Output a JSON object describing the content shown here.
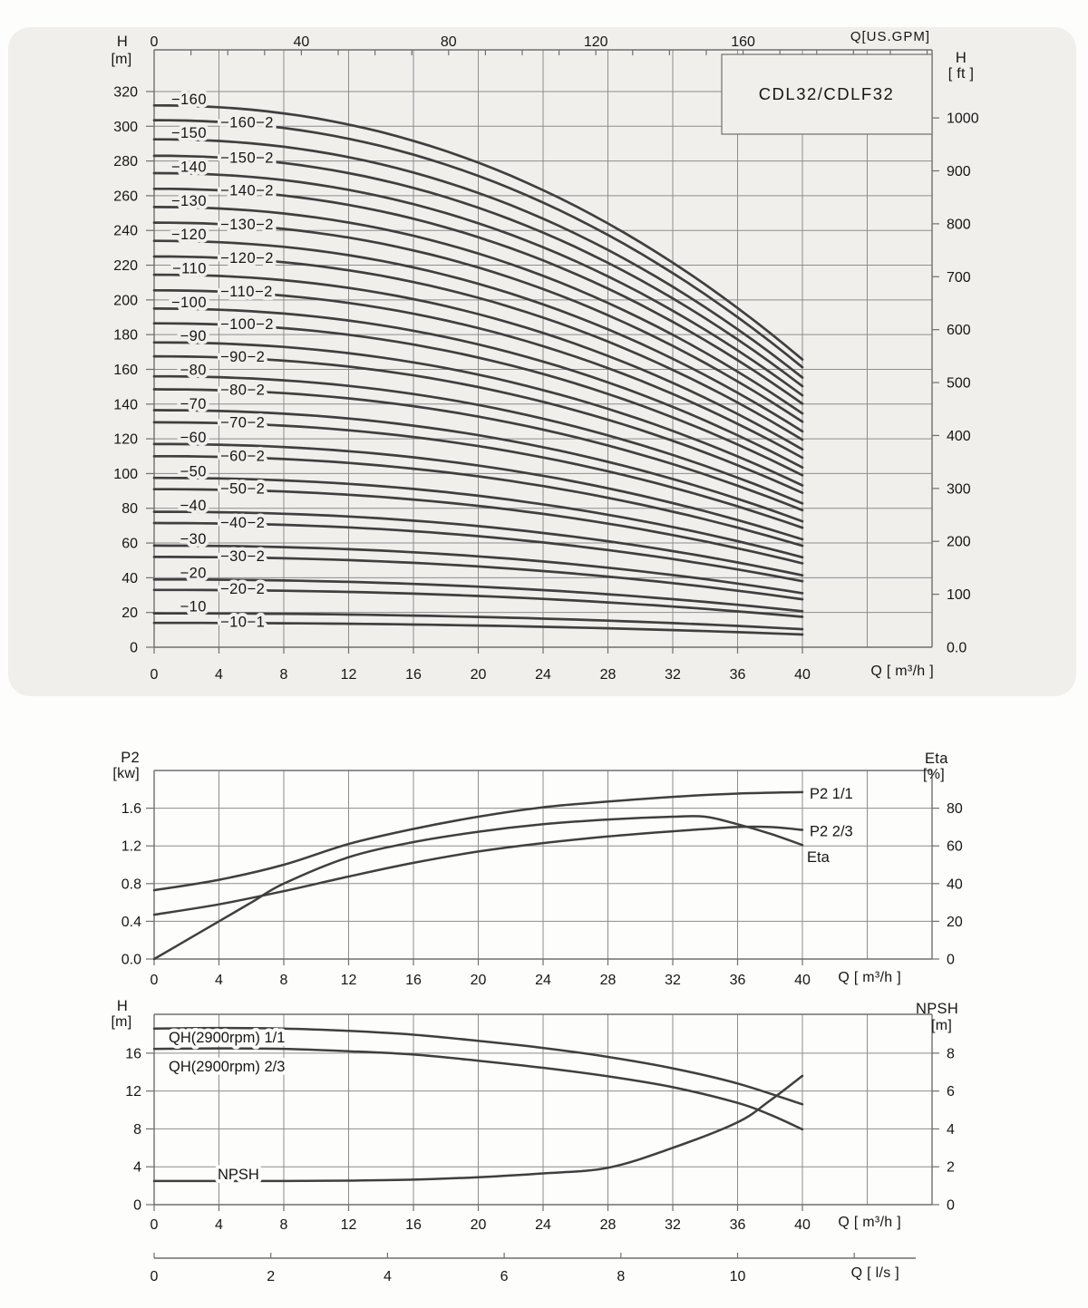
{
  "page": {
    "colors": {
      "background": "#fdfdfb",
      "card_background": "#f0efec",
      "grid": "#8d8d8d",
      "axis": "#6f6f6f",
      "curve": "#3f3f3f",
      "text": "#161616"
    }
  },
  "chart_data": [
    {
      "id": "qh-curve-family",
      "type": "line",
      "title": "CDL32/CDLF32",
      "axis_labels": {
        "left_top": "H",
        "left_unit": "[m]",
        "right_top": "H",
        "right_unit": "[ ft ]",
        "x_top": "Q[US.GPM]",
        "x_bottom": "Q [ m³/h ]"
      },
      "x_m3h": {
        "min": 0,
        "max": 48,
        "grid_step": 4,
        "tick_labels": [
          0,
          4,
          8,
          12,
          16,
          20,
          24,
          28,
          32,
          36,
          40
        ]
      },
      "x_gpm": {
        "tick_labels": [
          0,
          40,
          80,
          120,
          160
        ],
        "minor_tick_step": 10,
        "minor_tick_max": 210,
        "gpm_per_m3h": 4.40287
      },
      "y_m": {
        "min": 0,
        "max": 344,
        "grid_step": 20,
        "grid_max": 320,
        "tick_labels": [
          0,
          20,
          40,
          60,
          80,
          100,
          120,
          140,
          160,
          180,
          200,
          220,
          240,
          260,
          280,
          300,
          320
        ]
      },
      "y_ft": {
        "tick_values": [
          0,
          100,
          200,
          300,
          400,
          500,
          600,
          700,
          800,
          900,
          1000
        ],
        "tick_labels": [
          "0.0",
          "100",
          "200",
          "300",
          "400",
          "500",
          "600",
          "700",
          "800",
          "900",
          "1000"
        ],
        "m_per_ft": 0.3048
      },
      "q_end": 40,
      "shape_exponent": 2.15,
      "series": [
        {
          "label": "−160",
          "h0": 312.0,
          "h40": 165.7
        },
        {
          "label": "−160−2",
          "h0": 303.5,
          "h40": 161.2
        },
        {
          "label": "−150",
          "h0": 292.5,
          "h40": 155.3
        },
        {
          "label": "−150−2",
          "h0": 283.0,
          "h40": 150.3
        },
        {
          "label": "−140",
          "h0": 273.0,
          "h40": 145.0
        },
        {
          "label": "−140−2",
          "h0": 264.0,
          "h40": 140.2
        },
        {
          "label": "−130",
          "h0": 253.5,
          "h40": 134.6
        },
        {
          "label": "−130−2",
          "h0": 244.5,
          "h40": 129.8
        },
        {
          "label": "−120",
          "h0": 234.0,
          "h40": 124.3
        },
        {
          "label": "−120−2",
          "h0": 225.0,
          "h40": 119.5
        },
        {
          "label": "−110",
          "h0": 214.5,
          "h40": 113.9
        },
        {
          "label": "−110−2",
          "h0": 205.5,
          "h40": 109.1
        },
        {
          "label": "−100",
          "h0": 195.0,
          "h40": 103.5
        },
        {
          "label": "−100−2",
          "h0": 186.5,
          "h40": 99.0
        },
        {
          "label": "−90",
          "h0": 175.5,
          "h40": 93.2
        },
        {
          "label": "−90−2",
          "h0": 167.5,
          "h40": 88.9
        },
        {
          "label": "−80",
          "h0": 156.0,
          "h40": 82.8
        },
        {
          "label": "−80−2",
          "h0": 148.5,
          "h40": 78.9
        },
        {
          "label": "−70",
          "h0": 136.5,
          "h40": 72.5
        },
        {
          "label": "−70−2",
          "h0": 129.5,
          "h40": 68.8
        },
        {
          "label": "−60",
          "h0": 117.0,
          "h40": 62.1
        },
        {
          "label": "−60−2",
          "h0": 110.0,
          "h40": 58.4
        },
        {
          "label": "−50",
          "h0": 97.5,
          "h40": 51.8
        },
        {
          "label": "−50−2",
          "h0": 91.0,
          "h40": 48.3
        },
        {
          "label": "−40",
          "h0": 78.0,
          "h40": 41.4
        },
        {
          "label": "−40−2",
          "h0": 71.5,
          "h40": 38.0
        },
        {
          "label": "−30",
          "h0": 58.5,
          "h40": 31.1
        },
        {
          "label": "−30−2",
          "h0": 52.0,
          "h40": 27.6
        },
        {
          "label": "−20",
          "h0": 39.0,
          "h40": 20.7
        },
        {
          "label": "−20−2",
          "h0": 33.0,
          "h40": 17.5
        },
        {
          "label": "−10",
          "h0": 19.5,
          "h40": 10.4
        },
        {
          "label": "−10−1",
          "h0": 14.0,
          "h40": 7.3
        }
      ]
    },
    {
      "id": "power-efficiency",
      "type": "line",
      "axis_labels": {
        "left_top": "P2",
        "left_unit": "[kw]",
        "right_top": "Eta",
        "right_unit": "[%]",
        "x_bottom": "Q [ m³/h ]"
      },
      "x_m3h": {
        "min": 0,
        "max": 48,
        "grid_step": 4,
        "tick_labels": [
          0,
          4,
          8,
          12,
          16,
          20,
          24,
          28,
          32,
          36,
          40
        ]
      },
      "y_kw": {
        "min": 0,
        "max": 2.0,
        "tick_values": [
          0,
          0.4,
          0.8,
          1.2,
          1.6
        ],
        "tick_labels": [
          "0.0",
          "0.4",
          "0.8",
          "1.2",
          "1.6"
        ]
      },
      "y_eta": {
        "min": 0,
        "max": 100,
        "tick_values": [
          0,
          20,
          40,
          60,
          80
        ],
        "tick_labels": [
          "0",
          "20",
          "40",
          "60",
          "80"
        ]
      },
      "series": [
        {
          "label": "P2  1/1",
          "axis": "kw",
          "points": [
            [
              0,
              0.73
            ],
            [
              4,
              0.84
            ],
            [
              8,
              1.0
            ],
            [
              12,
              1.22
            ],
            [
              16,
              1.38
            ],
            [
              20,
              1.51
            ],
            [
              24,
              1.61
            ],
            [
              28,
              1.67
            ],
            [
              32,
              1.72
            ],
            [
              36,
              1.755
            ],
            [
              40,
              1.77
            ]
          ]
        },
        {
          "label": "P2  2/3",
          "axis": "kw",
          "points": [
            [
              0,
              0.47
            ],
            [
              4,
              0.58
            ],
            [
              8,
              0.72
            ],
            [
              12,
              0.875
            ],
            [
              16,
              1.02
            ],
            [
              20,
              1.14
            ],
            [
              24,
              1.23
            ],
            [
              28,
              1.3
            ],
            [
              32,
              1.355
            ],
            [
              36,
              1.4
            ],
            [
              38,
              1.4
            ],
            [
              40,
              1.37
            ]
          ]
        },
        {
          "label": "Eta",
          "axis": "eta",
          "points": [
            [
              0,
              0
            ],
            [
              2,
              10
            ],
            [
              4,
              20
            ],
            [
              6,
              30
            ],
            [
              8,
              40
            ],
            [
              12,
              54
            ],
            [
              16,
              62
            ],
            [
              20,
              67.5
            ],
            [
              24,
              71.5
            ],
            [
              28,
              74
            ],
            [
              32,
              75.5
            ],
            [
              34,
              75.5
            ],
            [
              36,
              71.5
            ],
            [
              38,
              66.5
            ],
            [
              40,
              60.5
            ]
          ]
        }
      ]
    },
    {
      "id": "qh-npsh",
      "type": "line",
      "axis_labels": {
        "left_top": "H",
        "left_unit": "[m]",
        "right_top": "NPSH",
        "right_unit": "[m]",
        "x_bottom": "Q [ m³/h ]",
        "x2_bottom": "Q [ l/s ]"
      },
      "x_m3h": {
        "min": 0,
        "max": 48,
        "grid_step": 4,
        "tick_labels": [
          0,
          4,
          8,
          12,
          16,
          20,
          24,
          28,
          32,
          36,
          40
        ]
      },
      "y_m": {
        "min": 0,
        "max": 20.1,
        "grid_step": 4,
        "tick_values": [
          0,
          4,
          8,
          12,
          16
        ],
        "tick_labels": [
          "0",
          "4",
          "8",
          "12",
          "16"
        ]
      },
      "y_npsh": {
        "min": 0,
        "max": 10,
        "tick_values": [
          0,
          2,
          4,
          6,
          8
        ],
        "tick_labels": [
          "0",
          "2",
          "4",
          "6",
          "8"
        ]
      },
      "x_ls": {
        "m3h_per_ls": 3.6,
        "tick_values": [
          0,
          2,
          4,
          6,
          8,
          10,
          12
        ],
        "tick_labels": [
          "0",
          "2",
          "4",
          "6",
          "8",
          "10"
        ]
      },
      "series": [
        {
          "label": "QH(2900rpm) 1/1",
          "axis": "m",
          "points": [
            [
              0,
              18.6
            ],
            [
              4,
              18.65
            ],
            [
              8,
              18.6
            ],
            [
              12,
              18.35
            ],
            [
              16,
              17.95
            ],
            [
              20,
              17.3
            ],
            [
              24,
              16.55
            ],
            [
              28,
              15.6
            ],
            [
              32,
              14.4
            ],
            [
              36,
              12.8
            ],
            [
              40,
              10.6
            ]
          ]
        },
        {
          "label": "QH(2900rpm) 2/3",
          "axis": "m",
          "points": [
            [
              0,
              16.45
            ],
            [
              4,
              16.5
            ],
            [
              8,
              16.45
            ],
            [
              12,
              16.2
            ],
            [
              16,
              15.85
            ],
            [
              20,
              15.2
            ],
            [
              24,
              14.45
            ],
            [
              28,
              13.55
            ],
            [
              32,
              12.4
            ],
            [
              36,
              10.75
            ],
            [
              38,
              9.5
            ],
            [
              40,
              7.95
            ]
          ]
        },
        {
          "label": "NPSH",
          "axis": "npsh",
          "points": [
            [
              0,
              1.25
            ],
            [
              4,
              1.25
            ],
            [
              8,
              1.25
            ],
            [
              12,
              1.27
            ],
            [
              16,
              1.32
            ],
            [
              20,
              1.45
            ],
            [
              24,
              1.65
            ],
            [
              28,
              1.95
            ],
            [
              32,
              3.0
            ],
            [
              36,
              4.35
            ],
            [
              38,
              5.5
            ],
            [
              40,
              6.8
            ]
          ]
        }
      ]
    }
  ]
}
